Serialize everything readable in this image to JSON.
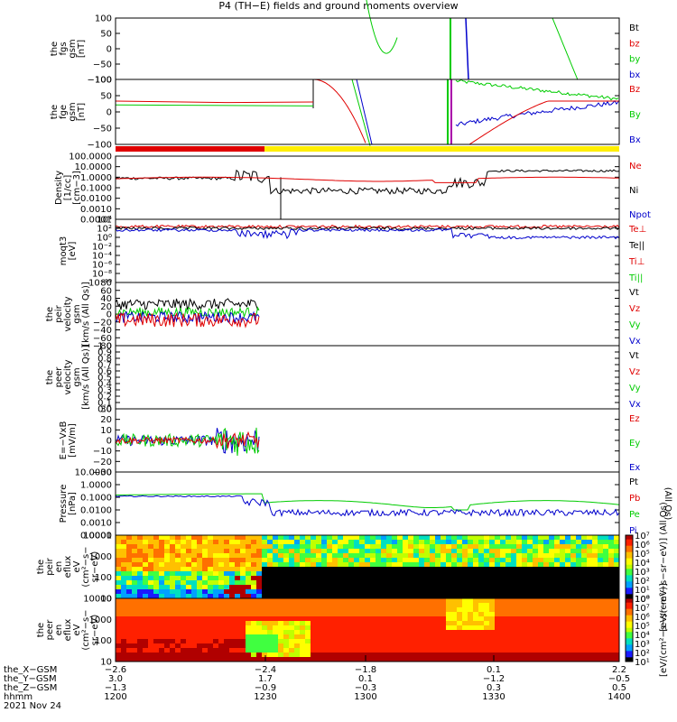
{
  "title": "P4 (TH−E) fields and ground moments overview",
  "colors": {
    "black": "#000000",
    "red": "#e00000",
    "green": "#00cc00",
    "blue": "#0000cc"
  },
  "chart_data": [
    {
      "type": "line",
      "name": "panel1",
      "ylabel": [
        "the",
        "fgs",
        "gsm",
        "[nT]"
      ],
      "yticks": [
        "100",
        "50",
        "0",
        "−50",
        "−100"
      ],
      "legend": [
        "Bt",
        "bz",
        "by",
        "bx"
      ],
      "legend_colors": [
        "black",
        "red",
        "green",
        "blue"
      ]
    },
    {
      "type": "line",
      "name": "panel2",
      "ylabel": [
        "the",
        "fge",
        "gsm",
        "[nT]"
      ],
      "yticks": [
        "100",
        "50",
        "0",
        "−50",
        "−100"
      ],
      "legend": [
        "Bz",
        "By",
        "Bx"
      ],
      "legend_colors": [
        "red",
        "green",
        "blue"
      ]
    },
    {
      "type": "line",
      "name": "panel3",
      "ylabel": [
        "Density",
        "[1/cc]",
        "[cm−3]"
      ],
      "yticks": [
        "100.0000",
        "10.0000",
        "1.0000",
        "0.1000",
        "0.0100",
        "0.0010",
        "0.0001"
      ],
      "legend": [
        "Ne",
        "Ni",
        "Npot"
      ],
      "legend_colors": [
        "red",
        "black",
        "blue"
      ]
    },
    {
      "type": "line",
      "name": "panel4",
      "ylabel": [
        "moqt3",
        "[eV]"
      ],
      "yticks": [
        "10⁴",
        "10²",
        "10⁰",
        "10⁻²",
        "10⁻⁴",
        "10⁻⁶",
        "10⁻⁸",
        "10⁻¹⁰"
      ],
      "legend": [
        "Te⊥",
        "Te||",
        "Ti⊥",
        "Ti||"
      ],
      "legend_colors": [
        "red",
        "black",
        "red",
        "green"
      ]
    },
    {
      "type": "line",
      "name": "panel5",
      "ylabel": [
        "the",
        "peir",
        "velocity",
        "gsm",
        "[km/s (All Qs)]"
      ],
      "yticks": [
        "80",
        "60",
        "40",
        "20",
        "0",
        "−20",
        "−40",
        "−60",
        "−80"
      ],
      "legend": [
        "Vt",
        "Vz",
        "Vy",
        "Vx"
      ],
      "legend_colors": [
        "black",
        "red",
        "green",
        "blue"
      ]
    },
    {
      "type": "line",
      "name": "panel6",
      "ylabel": [
        "the",
        "peer",
        "velocity",
        "gsm",
        "[km/s (All Qs)]"
      ],
      "yticks": [
        "1.0",
        "0.9",
        "0.8",
        "0.7",
        "0.6",
        "0.5",
        "0.4",
        "0.3",
        "0.2",
        "0.1",
        "0.0"
      ],
      "legend": [
        "Vt",
        "Vz",
        "Vy",
        "Vx"
      ],
      "legend_colors": [
        "black",
        "red",
        "green",
        "blue"
      ]
    },
    {
      "type": "line",
      "name": "panel7",
      "ylabel": [
        "E=−VxB",
        "[mV/m]"
      ],
      "yticks": [
        "30",
        "20",
        "10",
        "0",
        "−10",
        "−20",
        "−30"
      ],
      "legend": [
        "Ez",
        "Ey",
        "Ex"
      ],
      "legend_colors": [
        "red",
        "green",
        "blue"
      ]
    },
    {
      "type": "line",
      "name": "panel8",
      "ylabel": [
        "Pressure",
        "[nPa]"
      ],
      "yticks": [
        "10.0000",
        "1.0000",
        "0.1000",
        "0.0100",
        "0.0010",
        "0.0001"
      ],
      "legend": [
        "Pt",
        "Pb",
        "Pe",
        "Pi"
      ],
      "legend_colors": [
        "black",
        "red",
        "green",
        "blue"
      ],
      "legend_note": "(All Qs)"
    },
    {
      "type": "heatmap",
      "name": "panel9",
      "ylabel": [
        "the",
        "peir",
        "en",
        "eflux",
        "eV",
        "(cm²−s−",
        "sr−eV)"
      ],
      "yticks": [
        "10000",
        "1000",
        "100",
        "10"
      ]
    },
    {
      "type": "heatmap",
      "name": "panel10",
      "ylabel": [
        "the",
        "peer",
        "en",
        "eflux",
        "eV",
        "(cm²−s−",
        "sr−eV)"
      ],
      "yticks": [
        "10000",
        "1000",
        "100",
        "10"
      ]
    }
  ],
  "colorbar1": {
    "labels": [
      "10⁷",
      "10⁶",
      "10⁵",
      "10⁴",
      "10³",
      "10²",
      "10¹",
      "10⁰"
    ],
    "title": "[eV/(cm²−s−sr−eV)] (All Qs)"
  },
  "colorbar2": {
    "labels": [
      "10⁸",
      "10⁷",
      "10⁶",
      "10⁵",
      "10⁴",
      "10³",
      "10²",
      "10¹"
    ],
    "title": "[eV/(cm²−s−sr−eV)]"
  },
  "xaxis": {
    "row_labels": [
      "the_X−GSM",
      "the_Y−GSM",
      "the_Z−GSM",
      "hhmm",
      "2021 Nov 24"
    ],
    "columns": [
      [
        "−2.6",
        "3.0",
        "−1.3",
        "1200"
      ],
      [
        "−2.4",
        "1.7",
        "−0.9",
        "1230"
      ],
      [
        "−1.8",
        "0.1",
        "−0.3",
        "1300"
      ],
      [
        "0.1",
        "−1.2",
        "0.3",
        "1330"
      ],
      [
        "2.2",
        "−0.5",
        "0.5",
        "1400"
      ]
    ]
  }
}
